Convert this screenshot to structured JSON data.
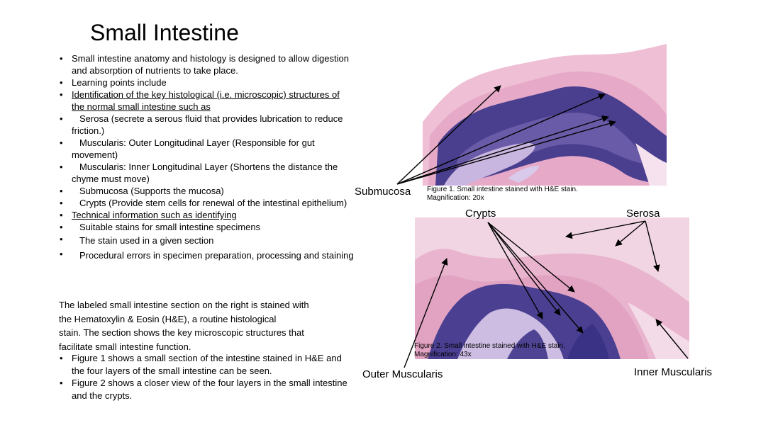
{
  "title": "Small Intestine",
  "bullets": [
    {
      "text": "Small intestine anatomy and histology is designed to allow digestion and absorption of nutrients to take place."
    },
    {
      "text": "Learning points include"
    },
    {
      "text": "Identification of the key histological (i.e. microscopic) structures of the normal small intestine such as "
    },
    {
      "text": "Serosa (secrete a serous fluid that provides lubrication to reduce friction.)"
    },
    {
      "text": "Muscularis: Outer Longitudinal Layer (Responsible for gut movement)"
    },
    {
      "text": "Muscularis: Inner Longitudinal Layer (Shortens the distance the chyme must move)"
    },
    {
      "text": "Submucosa (Supports the mucosa)"
    },
    {
      "text": "Crypts (Provide stem cells for renewal of the intestinal epithelium)"
    },
    {
      "text": "Technical information such as identifying "
    },
    {
      "text": "Suitable stains for small intestine specimens"
    },
    {
      "text": "The stain used in a given section"
    },
    {
      "text": "Procedural errors in specimen preparation, processing and staining"
    }
  ],
  "paragraph": [
    "The labeled small intestine section on the right is stained with",
    "the Hematoxylin  & Eosin (H&E), a routine histological",
    "stain.  The section shows the key microscopic structures that",
    "facilitate small intestine function."
  ],
  "figure_bullets": [
    {
      "text": "Figure 1 shows a small section of the intestine stained in H&E and the four layers of the small intestine can be seen."
    },
    {
      "text": "Figure 2 shows a closer view of the four layers in the small intestine and the crypts."
    }
  ],
  "figure1": {
    "caption_line1": "Figure 1. Small intestine stained with H&E stain.",
    "caption_line2": "Magnification: 20x",
    "label_submucosa": "Submucosa"
  },
  "figure2": {
    "caption_line1": "Figure 2. Small intestine stained with H&E stain.",
    "caption_line2": "Magnification: 43x",
    "label_crypts": "Crypts",
    "label_serosa": "Serosa",
    "label_outer": "Outer Muscularis",
    "label_inner": "Inner  Muscularis"
  },
  "colors": {
    "eosin_pink": "#e9b3cc",
    "light_pink": "#f3d9e6",
    "hematoxylin_purple": "#4b3f8f",
    "dark_purple": "#2f2a70"
  }
}
